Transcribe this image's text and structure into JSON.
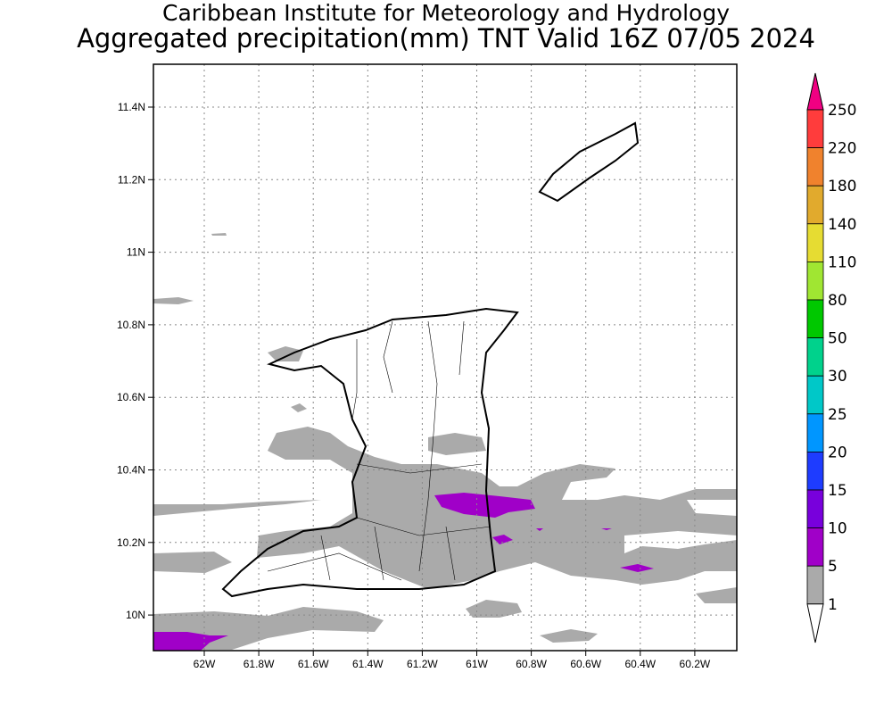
{
  "title": {
    "line1": "Caribbean Institute for Meteorology and Hydrology",
    "line2": "Aggregated precipitation(mm) TNT Valid 16Z 07/05 2024"
  },
  "map": {
    "lat_ticks": [
      "11.4N",
      "11.2N",
      "11N",
      "10.8N",
      "10.6N",
      "10.4N",
      "10.2N",
      "10N"
    ],
    "lon_ticks": [
      "62W",
      "61.8W",
      "61.6W",
      "61.4W",
      "61.2W",
      "61W",
      "60.8W",
      "60.6W",
      "60.4W",
      "60.2W"
    ],
    "colors": {
      "light": "#aaaaaa",
      "purple": "#a000c8"
    }
  },
  "colorbar": {
    "labels": [
      "250",
      "220",
      "180",
      "140",
      "110",
      "80",
      "50",
      "30",
      "25",
      "20",
      "15",
      "10",
      "5",
      "1"
    ],
    "colors": [
      "#ff3c3c",
      "#f0822d",
      "#e1aa2d",
      "#e6dc32",
      "#a0e632",
      "#00c800",
      "#00d28c",
      "#00c8c8",
      "#0096ff",
      "#1e3cff",
      "#7800dc",
      "#a000c8",
      "#aaaaaa"
    ],
    "top_arrow": "#f00082",
    "bottom_arrow": "#ffffff"
  }
}
